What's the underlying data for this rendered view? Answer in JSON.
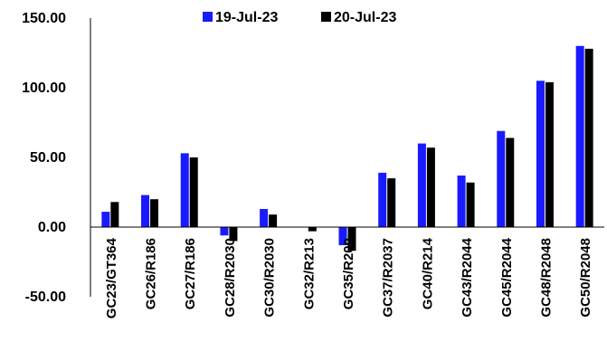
{
  "chart_data": {
    "type": "bar",
    "title": "",
    "xlabel": "",
    "ylabel": "",
    "ylim": [
      -50,
      150
    ],
    "yticks": [
      -50,
      0,
      50,
      100,
      150
    ],
    "ytick_labels": [
      "-50.00",
      "0.00",
      "50.00",
      "100.00",
      "150.00"
    ],
    "grid": false,
    "legend_position": "top-center",
    "categories": [
      "GC23/GT364",
      "GC26/R186",
      "GC27/R186",
      "GC28/R2030",
      "GC30/R2030",
      "GC32/R213",
      "GC35/R209",
      "GC37/R2037",
      "GC40/R214",
      "GC43/R2044",
      "GC45/R2044",
      "GC48/R2048",
      "GC50/R2048"
    ],
    "series": [
      {
        "name": "19-Jul-23",
        "color": "#1a1aff",
        "values": [
          11,
          23,
          53,
          -6,
          13,
          0,
          -13,
          39,
          60,
          37,
          69,
          105,
          130
        ]
      },
      {
        "name": "20-Jul-23",
        "color": "#000000",
        "values": [
          18,
          20,
          50,
          -10,
          9,
          -3,
          -17,
          35,
          57,
          32,
          64,
          104,
          128
        ]
      }
    ]
  }
}
